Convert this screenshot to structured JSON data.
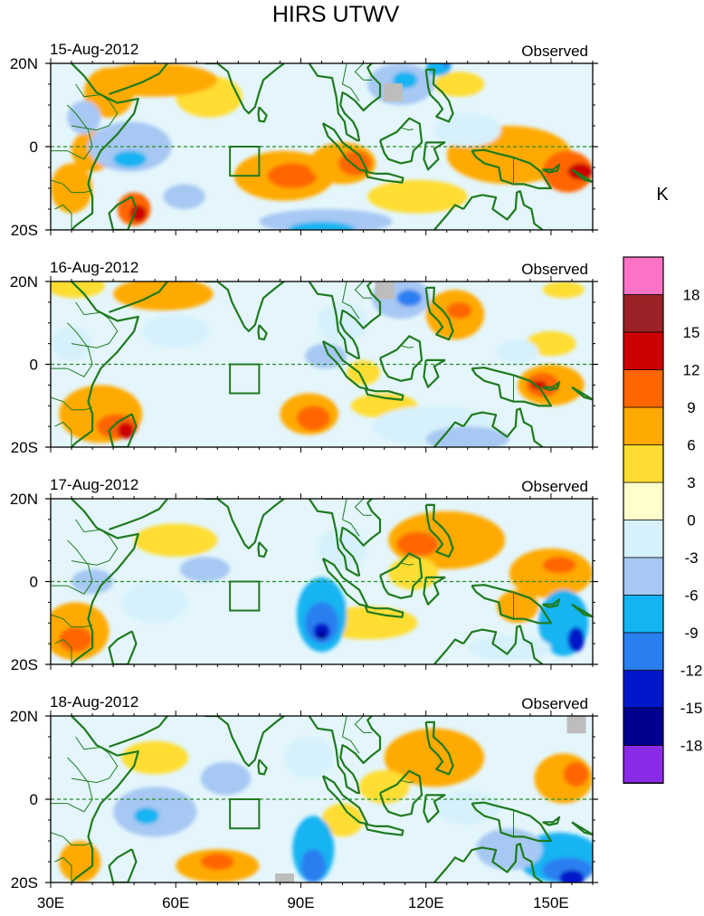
{
  "title": "HIRS UTWV",
  "unit_label": "K",
  "observed_label": "Observed",
  "equator_label": "0",
  "lat_labels": {
    "north": "20N",
    "south": "20S"
  },
  "lon_ticks": [
    {
      "lon": 30,
      "label": "30E"
    },
    {
      "lon": 60,
      "label": "60E"
    },
    {
      "lon": 90,
      "label": "90E"
    },
    {
      "lon": 120,
      "label": "120E"
    },
    {
      "lon": 150,
      "label": "150E"
    }
  ],
  "map_extent": {
    "lon_min": 30,
    "lon_max": 160,
    "lat_min": -20,
    "lat_max": 20
  },
  "box_region": {
    "lon_min": 73,
    "lon_max": 80,
    "lat_min": -7,
    "lat_max": 0
  },
  "colorbar": {
    "labels": [
      "18",
      "15",
      "12",
      "9",
      "6",
      "3",
      "0",
      "-3",
      "-6",
      "-9",
      "-12",
      "-15",
      "-18"
    ],
    "colors": [
      "#fb73c6",
      "#9b2226",
      "#cc0000",
      "#ff6600",
      "#ffaa00",
      "#ffdd33",
      "#ffffcc",
      "#d6f1fb",
      "#a6c8f3",
      "#14b4f2",
      "#2a7ff0",
      "#0018c9",
      "#02008c",
      "#8a2be8"
    ]
  },
  "panels": [
    {
      "date": "15-Aug-2012",
      "blobs": [
        {
          "lon": 86,
          "lat": -7,
          "rx": 12,
          "ry": 6,
          "v": 6
        },
        {
          "lon": 88,
          "lat": -7,
          "rx": 6,
          "ry": 3,
          "v": 9
        },
        {
          "lon": 100,
          "lat": -4,
          "rx": 8,
          "ry": 5,
          "v": 6
        },
        {
          "lon": 103,
          "lat": -4,
          "rx": 4,
          "ry": 3,
          "v": 9
        },
        {
          "lon": 68,
          "lat": 12,
          "rx": 8,
          "ry": 5,
          "v": 3
        },
        {
          "lon": 55,
          "lat": 16,
          "rx": 15,
          "ry": 4,
          "v": 6
        },
        {
          "lon": 44,
          "lat": 13,
          "rx": 6,
          "ry": 6,
          "v": 6
        },
        {
          "lon": 40,
          "lat": -1,
          "rx": 5,
          "ry": 5,
          "v": 6
        },
        {
          "lon": 35,
          "lat": -10,
          "rx": 5,
          "ry": 6,
          "v": 6
        },
        {
          "lon": 50,
          "lat": -15,
          "rx": 4,
          "ry": 4,
          "v": 9
        },
        {
          "lon": 51,
          "lat": -16,
          "rx": 2,
          "ry": 2,
          "v": 12
        },
        {
          "lon": 140,
          "lat": -2,
          "rx": 15,
          "ry": 7,
          "v": 6
        },
        {
          "lon": 154,
          "lat": -6,
          "rx": 6,
          "ry": 5,
          "v": 9
        },
        {
          "lon": 157,
          "lat": -6,
          "rx": 3,
          "ry": 2,
          "v": 12
        },
        {
          "lon": 128,
          "lat": 15,
          "rx": 6,
          "ry": 3,
          "v": 3
        },
        {
          "lon": 118,
          "lat": -12,
          "rx": 12,
          "ry": 4,
          "v": 3
        },
        {
          "lon": 49,
          "lat": 0,
          "rx": 10,
          "ry": 6,
          "v": -6
        },
        {
          "lon": 49,
          "lat": -3,
          "rx": 4,
          "ry": 2,
          "v": -9
        },
        {
          "lon": 38,
          "lat": 7,
          "rx": 4,
          "ry": 4,
          "v": -6
        },
        {
          "lon": 114,
          "lat": 15,
          "rx": 8,
          "ry": 5,
          "v": -6
        },
        {
          "lon": 115,
          "lat": 16,
          "rx": 3,
          "ry": 2,
          "v": -9
        },
        {
          "lon": 123,
          "lat": 19,
          "rx": 3,
          "ry": 2,
          "v": -9
        },
        {
          "lon": 125,
          "lat": 20,
          "rx": 1,
          "ry": 1,
          "v": -12
        },
        {
          "lon": 96,
          "lat": -18,
          "rx": 16,
          "ry": 3,
          "v": -6
        },
        {
          "lon": 95,
          "lat": -20,
          "rx": 8,
          "ry": 2,
          "v": -9
        },
        {
          "lon": 62,
          "lat": -12,
          "rx": 5,
          "ry": 3,
          "v": -6
        },
        {
          "lon": 130,
          "lat": 4,
          "rx": 8,
          "ry": 4,
          "v": -3
        }
      ],
      "missing": [
        {
          "lon": 112,
          "lat": 13
        }
      ]
    },
    {
      "date": "16-Aug-2012",
      "blobs": [
        {
          "lon": 92,
          "lat": -12,
          "rx": 7,
          "ry": 5,
          "v": 6
        },
        {
          "lon": 93,
          "lat": -13,
          "rx": 4,
          "ry": 3,
          "v": 9
        },
        {
          "lon": 42,
          "lat": -12,
          "rx": 10,
          "ry": 7,
          "v": 6
        },
        {
          "lon": 46,
          "lat": -15,
          "rx": 5,
          "ry": 3,
          "v": 9
        },
        {
          "lon": 48,
          "lat": -16,
          "rx": 2,
          "ry": 2,
          "v": 12
        },
        {
          "lon": 57,
          "lat": 17,
          "rx": 12,
          "ry": 4,
          "v": 6
        },
        {
          "lon": 36,
          "lat": 19,
          "rx": 7,
          "ry": 3,
          "v": 3
        },
        {
          "lon": 150,
          "lat": -5,
          "rx": 8,
          "ry": 5,
          "v": 6
        },
        {
          "lon": 148,
          "lat": -5,
          "rx": 4,
          "ry": 3,
          "v": 9
        },
        {
          "lon": 147,
          "lat": -5,
          "rx": 2,
          "ry": 1,
          "v": 12
        },
        {
          "lon": 127,
          "lat": 12,
          "rx": 7,
          "ry": 6,
          "v": 6
        },
        {
          "lon": 128,
          "lat": 13,
          "rx": 3,
          "ry": 2,
          "v": 9
        },
        {
          "lon": 105,
          "lat": -2,
          "rx": 4,
          "ry": 3,
          "v": 3
        },
        {
          "lon": 110,
          "lat": -10,
          "rx": 8,
          "ry": 3,
          "v": 3
        },
        {
          "lon": 153,
          "lat": 18,
          "rx": 5,
          "ry": 2,
          "v": 3
        },
        {
          "lon": 150,
          "lat": 5,
          "rx": 6,
          "ry": 3,
          "v": 3
        },
        {
          "lon": 114,
          "lat": 16,
          "rx": 7,
          "ry": 5,
          "v": -6
        },
        {
          "lon": 116,
          "lat": 16,
          "rx": 3,
          "ry": 2,
          "v": -12
        },
        {
          "lon": 60,
          "lat": 8,
          "rx": 8,
          "ry": 4,
          "v": -3
        },
        {
          "lon": 35,
          "lat": 5,
          "rx": 5,
          "ry": 4,
          "v": -3
        },
        {
          "lon": 122,
          "lat": -15,
          "rx": 15,
          "ry": 5,
          "v": -3
        },
        {
          "lon": 130,
          "lat": -18,
          "rx": 10,
          "ry": 3,
          "v": -6
        },
        {
          "lon": 96,
          "lat": 2,
          "rx": 5,
          "ry": 3,
          "v": -6
        },
        {
          "lon": 100,
          "lat": 10,
          "rx": 6,
          "ry": 5,
          "v": -3
        },
        {
          "lon": 142,
          "lat": 3,
          "rx": 5,
          "ry": 3,
          "v": -3
        }
      ],
      "missing": [
        {
          "lon": 110,
          "lat": 18
        }
      ]
    },
    {
      "date": "17-Aug-2012",
      "blobs": [
        {
          "lon": 125,
          "lat": 10,
          "rx": 14,
          "ry": 7,
          "v": 6
        },
        {
          "lon": 118,
          "lat": 9,
          "rx": 5,
          "ry": 3,
          "v": 9
        },
        {
          "lon": 117,
          "lat": 2,
          "rx": 6,
          "ry": 4,
          "v": 3
        },
        {
          "lon": 150,
          "lat": 2,
          "rx": 10,
          "ry": 6,
          "v": 6
        },
        {
          "lon": 152,
          "lat": 4,
          "rx": 4,
          "ry": 2,
          "v": 9
        },
        {
          "lon": 142,
          "lat": -6,
          "rx": 5,
          "ry": 4,
          "v": 6
        },
        {
          "lon": 36,
          "lat": -12,
          "rx": 8,
          "ry": 7,
          "v": 6
        },
        {
          "lon": 36,
          "lat": -14,
          "rx": 4,
          "ry": 3,
          "v": 9
        },
        {
          "lon": 60,
          "lat": 10,
          "rx": 10,
          "ry": 4,
          "v": 3
        },
        {
          "lon": 106,
          "lat": -10,
          "rx": 12,
          "ry": 4,
          "v": 3
        },
        {
          "lon": 95,
          "lat": -8,
          "rx": 6,
          "ry": 9,
          "v": -9
        },
        {
          "lon": 95,
          "lat": -10,
          "rx": 4,
          "ry": 5,
          "v": -12
        },
        {
          "lon": 95,
          "lat": -12,
          "rx": 2,
          "ry": 2,
          "v": -15
        },
        {
          "lon": 95,
          "lat": -13,
          "rx": 1,
          "ry": 1,
          "v": -18
        },
        {
          "lon": 153,
          "lat": -10,
          "rx": 6,
          "ry": 8,
          "v": -9
        },
        {
          "lon": 156,
          "lat": -14,
          "rx": 2,
          "ry": 3,
          "v": -15
        },
        {
          "lon": 40,
          "lat": 0,
          "rx": 5,
          "ry": 3,
          "v": -6
        },
        {
          "lon": 67,
          "lat": 3,
          "rx": 6,
          "ry": 3,
          "v": -6
        },
        {
          "lon": 55,
          "lat": -5,
          "rx": 8,
          "ry": 5,
          "v": -3
        },
        {
          "lon": 140,
          "lat": -16,
          "rx": 10,
          "ry": 3,
          "v": -3
        },
        {
          "lon": 100,
          "lat": 8,
          "rx": 6,
          "ry": 5,
          "v": -3
        }
      ],
      "missing": []
    },
    {
      "date": "18-Aug-2012",
      "blobs": [
        {
          "lon": 122,
          "lat": 10,
          "rx": 12,
          "ry": 7,
          "v": 6
        },
        {
          "lon": 110,
          "lat": 3,
          "rx": 6,
          "ry": 4,
          "v": 3
        },
        {
          "lon": 153,
          "lat": 5,
          "rx": 7,
          "ry": 6,
          "v": 6
        },
        {
          "lon": 156,
          "lat": 6,
          "rx": 3,
          "ry": 3,
          "v": 9
        },
        {
          "lon": 70,
          "lat": -16,
          "rx": 10,
          "ry": 4,
          "v": 6
        },
        {
          "lon": 70,
          "lat": -15,
          "rx": 4,
          "ry": 2,
          "v": 9
        },
        {
          "lon": 100,
          "lat": -5,
          "rx": 5,
          "ry": 4,
          "v": 3
        },
        {
          "lon": 37,
          "lat": -15,
          "rx": 5,
          "ry": 5,
          "v": 6
        },
        {
          "lon": 55,
          "lat": 10,
          "rx": 8,
          "ry": 4,
          "v": 3
        },
        {
          "lon": 152,
          "lat": -14,
          "rx": 10,
          "ry": 6,
          "v": -9
        },
        {
          "lon": 154,
          "lat": -17,
          "rx": 6,
          "ry": 3,
          "v": -12
        },
        {
          "lon": 155,
          "lat": -19,
          "rx": 3,
          "ry": 2,
          "v": -15
        },
        {
          "lon": 93,
          "lat": -12,
          "rx": 5,
          "ry": 8,
          "v": -9
        },
        {
          "lon": 93,
          "lat": -16,
          "rx": 3,
          "ry": 4,
          "v": -12
        },
        {
          "lon": 140,
          "lat": -12,
          "rx": 8,
          "ry": 5,
          "v": -6
        },
        {
          "lon": 55,
          "lat": -3,
          "rx": 10,
          "ry": 6,
          "v": -6
        },
        {
          "lon": 53,
          "lat": -4,
          "rx": 3,
          "ry": 2,
          "v": -9
        },
        {
          "lon": 72,
          "lat": 5,
          "rx": 6,
          "ry": 4,
          "v": -6
        },
        {
          "lon": 92,
          "lat": 10,
          "rx": 6,
          "ry": 5,
          "v": -3
        },
        {
          "lon": 130,
          "lat": -2,
          "rx": 8,
          "ry": 4,
          "v": -3
        }
      ],
      "missing": [
        {
          "lon": 156,
          "lat": 18
        },
        {
          "lon": 86,
          "lat": -20
        }
      ]
    }
  ]
}
